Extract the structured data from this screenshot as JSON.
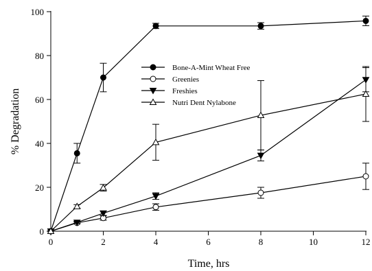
{
  "chart_data": {
    "type": "line",
    "xlabel": "Time, hrs",
    "ylabel": "% Degradation",
    "xlim": [
      0,
      12
    ],
    "ylim": [
      0,
      100
    ],
    "xticks": [
      0,
      2,
      4,
      6,
      8,
      10,
      12
    ],
    "yticks": [
      0,
      20,
      40,
      60,
      80,
      100
    ],
    "grid": false,
    "legend_position": "upper-left inside",
    "series": [
      {
        "name": "Bone-A-Mint Wheat Free",
        "marker": "filled-circle",
        "color": "#000000",
        "x": [
          0,
          1,
          2,
          4,
          8,
          12
        ],
        "y": [
          0,
          35.5,
          70,
          93.5,
          93.5,
          95.8
        ],
        "err": [
          0,
          4.5,
          6.5,
          1.2,
          1.5,
          2.2
        ]
      },
      {
        "name": "Greenies",
        "marker": "open-circle",
        "color": "#000000",
        "x": [
          0,
          1,
          2,
          4,
          8,
          12
        ],
        "y": [
          0,
          3.8,
          6,
          11,
          17.5,
          25
        ],
        "err": [
          0,
          0.5,
          1,
          1.5,
          2.5,
          6
        ]
      },
      {
        "name": "Freshies",
        "marker": "filled-triangle-down",
        "color": "#000000",
        "x": [
          0,
          1,
          2,
          4,
          8,
          12
        ],
        "y": [
          0,
          4,
          8.2,
          16,
          34.5,
          69
        ],
        "err": [
          0,
          0.5,
          1,
          1.5,
          2.5,
          5.5
        ]
      },
      {
        "name": "Nutri Dent Nylabone",
        "marker": "open-triangle-up",
        "color": "#000000",
        "x": [
          0,
          1,
          2,
          4,
          8,
          12
        ],
        "y": [
          0,
          11.3,
          19.8,
          40.5,
          52.8,
          62.5
        ],
        "err": [
          0,
          0.8,
          1.5,
          8.2,
          15.8,
          12.5
        ]
      }
    ]
  }
}
